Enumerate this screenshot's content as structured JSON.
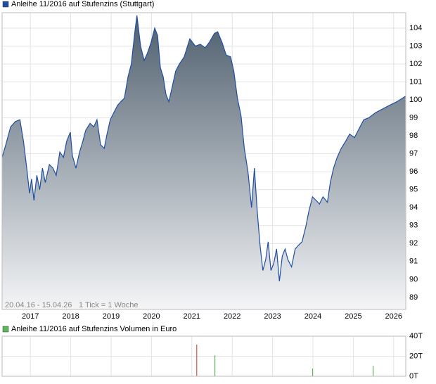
{
  "chart_data": [
    {
      "type": "area",
      "series": [
        {
          "name": "Anleihe 11/2016 auf Stufenzins (Stuttgart)",
          "color": "#1f4ea3",
          "x": [
            2016.3,
            2016.39,
            2016.51,
            2016.63,
            2016.74,
            2016.83,
            2016.91,
            2016.98,
            2017.03,
            2017.09,
            2017.16,
            2017.23,
            2017.3,
            2017.37,
            2017.47,
            2017.56,
            2017.64,
            2017.73,
            2017.82,
            2017.9,
            2017.99,
            2018.04,
            2018.13,
            2018.22,
            2018.3,
            2018.37,
            2018.48,
            2018.57,
            2018.65,
            2018.74,
            2018.83,
            2018.9,
            2018.98,
            2019.07,
            2019.16,
            2019.24,
            2019.33,
            2019.42,
            2019.5,
            2019.59,
            2019.64,
            2019.73,
            2019.82,
            2019.9,
            2019.99,
            2020.08,
            2020.15,
            2020.22,
            2020.29,
            2020.36,
            2020.43,
            2020.51,
            2020.6,
            2020.69,
            2020.81,
            2020.95,
            2021.09,
            2021.21,
            2021.33,
            2021.43,
            2021.56,
            2021.64,
            2021.75,
            2021.85,
            2021.96,
            2022.04,
            2022.13,
            2022.22,
            2022.3,
            2022.39,
            2022.48,
            2022.55,
            2022.62,
            2022.69,
            2022.76,
            2022.83,
            2022.89,
            2022.96,
            2023.03,
            2023.1,
            2023.17,
            2023.24,
            2023.31,
            2023.38,
            2023.47,
            2023.56,
            2023.64,
            2023.73,
            2023.83,
            2023.9,
            2023.99,
            2024.08,
            2024.16,
            2024.25,
            2024.36,
            2024.43,
            2024.51,
            2024.6,
            2024.7,
            2024.81,
            2024.91,
            2025.03,
            2025.12,
            2025.26,
            2025.38,
            2025.56,
            2025.73,
            2025.9,
            2026.08,
            2026.29
          ],
          "values": [
            96.8,
            97.5,
            98.5,
            98.8,
            98.9,
            97.7,
            96.2,
            94.8,
            95.6,
            94.4,
            95.8,
            95.0,
            96.2,
            95.4,
            96.4,
            96.2,
            95.8,
            97.1,
            96.8,
            97.7,
            98.2,
            96.9,
            96.2,
            97.1,
            97.7,
            98.3,
            98.7,
            98.5,
            98.9,
            97.5,
            97.3,
            98.1,
            98.9,
            99.3,
            99.7,
            99.9,
            100.1,
            101.3,
            102.0,
            103.8,
            104.7,
            103.0,
            102.2,
            102.6,
            103.2,
            104.0,
            103.6,
            101.8,
            101.3,
            100.3,
            99.9,
            100.7,
            101.6,
            102.0,
            102.4,
            103.4,
            103.0,
            103.1,
            102.9,
            103.2,
            103.7,
            103.8,
            103.2,
            102.5,
            102.4,
            101.6,
            100.1,
            99.1,
            97.3,
            96.0,
            94.0,
            96.2,
            93.8,
            91.9,
            90.5,
            91.1,
            92.1,
            90.5,
            90.9,
            91.7,
            89.9,
            91.3,
            91.7,
            91.1,
            90.7,
            91.7,
            91.9,
            92.1,
            93.0,
            93.8,
            94.6,
            94.4,
            94.2,
            94.6,
            94.3,
            95.4,
            96.2,
            96.8,
            97.3,
            97.7,
            98.1,
            97.9,
            98.3,
            98.9,
            99.0,
            99.3,
            99.5,
            99.7,
            99.9,
            100.2
          ]
        }
      ],
      "xlim": [
        2016.3,
        2026.3
      ],
      "xticks": [
        2017,
        2018,
        2019,
        2020,
        2021,
        2022,
        2023,
        2024,
        2025,
        2026
      ],
      "ylim": [
        88.33,
        104.86
      ],
      "yticks": [
        104,
        103,
        102,
        101,
        100,
        99,
        98,
        97,
        96,
        95,
        94,
        93,
        92,
        91,
        90,
        89
      ],
      "grid": true,
      "date_range": "20.04.16 - 15.04.26",
      "tick_note": "1 Tick = 1 Woche"
    },
    {
      "type": "bar",
      "series": [
        {
          "name": "Anleihe 11/2016 auf Stufenzins Volumen in Euro",
          "color": "#5cb85c",
          "x": [
            2021.12,
            2021.57,
            2023.99,
            2025.49
          ],
          "values": [
            31.6,
            21,
            7.7,
            10.5
          ],
          "colors": [
            "#d9534f",
            "#5cb85c",
            "#5cb85c",
            "#5cb85c"
          ]
        }
      ],
      "xlim": [
        2016.3,
        2026.3
      ],
      "ylim": [
        0,
        40
      ],
      "yticks": [
        {
          "value": 40,
          "label": "40T"
        },
        {
          "value": 20,
          "label": "20T"
        },
        {
          "value": 0,
          "label": "0T"
        }
      ],
      "grid": true
    }
  ]
}
